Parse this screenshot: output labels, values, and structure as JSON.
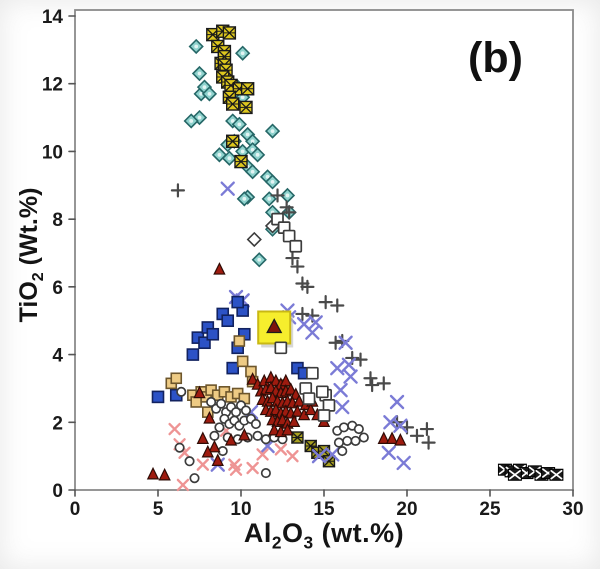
{
  "figure": {
    "panel_label": "(b)"
  },
  "labels": {
    "x_axis": {
      "element": "Al",
      "sub_a": "2",
      "oxide": "O",
      "sub_b": "3",
      "unit": " (wt.%)"
    },
    "y_axis": {
      "compound": "TiO",
      "sub": "2",
      "unit": " (Wt.%)"
    }
  },
  "chart_data": {
    "type": "scatter",
    "title": "",
    "xlabel": "Al2O3 (wt.%)",
    "ylabel": "TiO2 (Wt.%)",
    "xlim": [
      0,
      30
    ],
    "ylim": [
      0,
      14
    ],
    "xticks": [
      0,
      5,
      10,
      15,
      20,
      25,
      30
    ],
    "yticks": [
      0,
      2,
      4,
      6,
      8,
      10,
      12,
      14
    ],
    "grid": false,
    "legend": "none",
    "frame_color": "#8a8a8a",
    "tick_text_color": "#1a1a1a",
    "series": [
      {
        "name": "teal-diamonds",
        "marker": "diamond",
        "fill": "#8ed2cd",
        "stroke": "#266767",
        "size": 6.5,
        "points": [
          [
            7.3,
            13.1
          ],
          [
            10.1,
            12.9
          ],
          [
            7.5,
            12.3
          ],
          [
            7.6,
            11.7
          ],
          [
            7.8,
            11.9
          ],
          [
            8.1,
            11.7
          ],
          [
            9.8,
            11.9
          ],
          [
            10.1,
            11.6
          ],
          [
            7.5,
            11.0
          ],
          [
            7.0,
            10.9
          ],
          [
            9.5,
            10.9
          ],
          [
            9.9,
            10.8
          ],
          [
            11.9,
            10.6
          ],
          [
            9.6,
            10.3
          ],
          [
            10.4,
            10.5
          ],
          [
            10.7,
            10.3
          ],
          [
            9.2,
            10.2
          ],
          [
            8.7,
            9.9
          ],
          [
            9.3,
            9.8
          ],
          [
            10.1,
            10.0
          ],
          [
            10.7,
            10.05
          ],
          [
            11.0,
            9.9
          ],
          [
            10.4,
            9.55
          ],
          [
            10.7,
            9.4
          ],
          [
            11.6,
            9.25
          ],
          [
            11.9,
            9.1
          ],
          [
            12.8,
            8.7
          ],
          [
            10.4,
            8.65
          ],
          [
            10.2,
            8.6
          ],
          [
            11.7,
            8.6
          ],
          [
            11.9,
            8.2
          ],
          [
            12.9,
            8.2
          ],
          [
            11.9,
            7.7
          ],
          [
            11.1,
            6.8
          ]
        ]
      },
      {
        "name": "yellow-hatched-squares",
        "marker": "hatch-square",
        "fill": "#ddc71e",
        "stroke": "#1a1a1a",
        "size": 6,
        "points": [
          [
            8.3,
            13.45
          ],
          [
            8.9,
            13.55
          ],
          [
            9.3,
            13.5
          ],
          [
            8.6,
            13.1
          ],
          [
            9.0,
            12.95
          ],
          [
            8.8,
            12.6
          ],
          [
            9.0,
            12.8
          ],
          [
            9.0,
            12.55
          ],
          [
            9.1,
            12.4
          ],
          [
            8.9,
            12.2
          ],
          [
            9.2,
            12.05
          ],
          [
            9.4,
            11.95
          ],
          [
            9.9,
            11.85
          ],
          [
            9.3,
            11.6
          ],
          [
            9.5,
            11.4
          ],
          [
            10.4,
            11.85
          ],
          [
            10.3,
            11.3
          ],
          [
            9.5,
            10.3
          ],
          [
            10.0,
            9.7
          ]
        ]
      },
      {
        "name": "olive-hatched-squares",
        "marker": "hatch-square",
        "fill": "#a8a020",
        "stroke": "#1a1a1a",
        "size": 5.5,
        "points": [
          [
            13.4,
            1.55
          ],
          [
            14.2,
            1.3
          ],
          [
            14.6,
            1.1
          ],
          [
            15.0,
            1.15
          ],
          [
            15.3,
            0.85
          ]
        ]
      },
      {
        "name": "gray-plus-marks",
        "marker": "plus",
        "fill": "none",
        "stroke": "#4a4a4a",
        "size": 6,
        "points": [
          [
            6.2,
            8.85
          ],
          [
            12.2,
            8.7
          ],
          [
            12.75,
            8.35
          ],
          [
            12.9,
            8.2
          ],
          [
            13.1,
            6.85
          ],
          [
            13.4,
            6.6
          ],
          [
            13.7,
            6.1
          ],
          [
            14.0,
            6.0
          ],
          [
            13.7,
            5.2
          ],
          [
            15.1,
            5.55
          ],
          [
            15.8,
            5.45
          ],
          [
            14.3,
            5.15
          ],
          [
            16.1,
            4.4
          ],
          [
            15.7,
            4.35
          ],
          [
            16.7,
            3.9
          ],
          [
            17.2,
            3.85
          ],
          [
            17.8,
            3.3
          ],
          [
            17.9,
            3.1
          ],
          [
            18.6,
            3.15
          ],
          [
            19.4,
            2.0
          ],
          [
            20.0,
            1.85
          ],
          [
            20.6,
            1.6
          ],
          [
            21.2,
            1.8
          ],
          [
            21.3,
            1.4
          ]
        ]
      },
      {
        "name": "blue-x-marks",
        "marker": "x",
        "fill": "none",
        "stroke": "#7b7bd6",
        "size": 6,
        "points": [
          [
            9.2,
            8.9
          ],
          [
            9.7,
            5.7
          ],
          [
            10.1,
            5.6
          ],
          [
            12.8,
            5.3
          ],
          [
            12.9,
            5.1
          ],
          [
            13.8,
            4.9
          ],
          [
            14.5,
            4.95
          ],
          [
            14.3,
            4.65
          ],
          [
            16.3,
            4.35
          ],
          [
            16.5,
            3.7
          ],
          [
            16.6,
            3.35
          ],
          [
            15.8,
            3.6
          ],
          [
            16.0,
            2.95
          ],
          [
            16.1,
            2.45
          ],
          [
            19.4,
            2.6
          ],
          [
            19.0,
            2.0
          ],
          [
            19.6,
            1.9
          ],
          [
            18.9,
            1.1
          ],
          [
            19.8,
            0.8
          ],
          [
            14.7,
            1.0
          ],
          [
            11.6,
            1.3
          ],
          [
            10.6,
            2.3
          ],
          [
            8.6,
            0.75
          ],
          [
            15.5,
            1.05
          ]
        ]
      },
      {
        "name": "pink-x-marks",
        "marker": "x",
        "fill": "none",
        "stroke": "#ee9494",
        "size": 5,
        "points": [
          [
            6.0,
            1.8
          ],
          [
            6.3,
            1.35
          ],
          [
            6.6,
            1.1
          ],
          [
            7.7,
            0.75
          ],
          [
            9.6,
            0.75
          ],
          [
            11.3,
            1.05
          ],
          [
            12.4,
            1.2
          ],
          [
            13.1,
            1.0
          ],
          [
            10.7,
            0.65
          ],
          [
            9.7,
            0.6
          ],
          [
            6.5,
            0.15
          ],
          [
            9.1,
            1.75
          ]
        ]
      },
      {
        "name": "blue-filled-squares",
        "marker": "square",
        "fill": "#2c52c6",
        "stroke": "#12225f",
        "size": 5.5,
        "points": [
          [
            7.4,
            4.5
          ],
          [
            7.8,
            4.35
          ],
          [
            8.0,
            4.8
          ],
          [
            8.3,
            4.6
          ],
          [
            8.9,
            5.2
          ],
          [
            9.2,
            5.0
          ],
          [
            10.1,
            5.3
          ],
          [
            9.8,
            5.55
          ],
          [
            10.2,
            4.6
          ],
          [
            9.8,
            4.2
          ],
          [
            7.1,
            4.0
          ],
          [
            5.0,
            2.75
          ],
          [
            6.1,
            2.8
          ],
          [
            13.4,
            3.6
          ],
          [
            13.8,
            3.45
          ],
          [
            9.5,
            3.6
          ]
        ]
      },
      {
        "name": "tan-squares",
        "marker": "square",
        "fill": "#eecb84",
        "stroke": "#6d562c",
        "size": 5,
        "points": [
          [
            5.8,
            3.15
          ],
          [
            6.1,
            3.3
          ],
          [
            7.1,
            2.8
          ],
          [
            7.3,
            2.6
          ],
          [
            7.6,
            2.9
          ],
          [
            7.9,
            2.75
          ],
          [
            8.2,
            2.95
          ],
          [
            8.6,
            2.8
          ],
          [
            9.0,
            2.9
          ],
          [
            9.4,
            2.75
          ],
          [
            9.8,
            2.85
          ],
          [
            10.2,
            2.7
          ],
          [
            10.7,
            3.2
          ],
          [
            9.9,
            4.4
          ],
          [
            10.1,
            3.8
          ],
          [
            10.6,
            3.5
          ],
          [
            12.5,
            3.1
          ],
          [
            8.0,
            2.3
          ]
        ]
      },
      {
        "name": "open-circles",
        "marker": "circle-open",
        "fill": "#ffffff",
        "stroke": "#3c3c3c",
        "size": 4.2,
        "points": [
          [
            8.2,
            2.6
          ],
          [
            8.5,
            2.4
          ],
          [
            8.8,
            2.55
          ],
          [
            9.1,
            2.3
          ],
          [
            9.4,
            2.45
          ],
          [
            9.7,
            2.3
          ],
          [
            10.0,
            2.5
          ],
          [
            10.3,
            2.35
          ],
          [
            9.0,
            2.1
          ],
          [
            9.3,
            1.95
          ],
          [
            9.6,
            2.05
          ],
          [
            9.9,
            1.9
          ],
          [
            10.2,
            2.05
          ],
          [
            10.6,
            2.1
          ],
          [
            10.9,
            1.95
          ],
          [
            8.7,
            1.85
          ],
          [
            8.4,
            1.6
          ],
          [
            9.2,
            1.55
          ],
          [
            9.8,
            1.5
          ],
          [
            10.4,
            1.55
          ],
          [
            11.0,
            1.6
          ],
          [
            11.5,
            1.5
          ],
          [
            12.0,
            1.55
          ],
          [
            12.5,
            1.5
          ],
          [
            8.9,
            1.15
          ],
          [
            7.2,
            0.35
          ],
          [
            6.9,
            0.85
          ],
          [
            6.3,
            1.25
          ],
          [
            6.4,
            2.9
          ],
          [
            11.5,
            0.5
          ],
          [
            15.8,
            1.75
          ],
          [
            16.2,
            1.85
          ],
          [
            16.7,
            1.9
          ],
          [
            17.1,
            1.8
          ],
          [
            15.9,
            1.4
          ],
          [
            16.4,
            1.45
          ],
          [
            16.9,
            1.45
          ],
          [
            17.4,
            1.55
          ],
          [
            16.1,
            1.15
          ]
        ]
      },
      {
        "name": "red-triangles",
        "marker": "triangle",
        "fill": "#9e1b0f",
        "stroke": "#2f0c06",
        "size": 5.5,
        "points": [
          [
            8.7,
            6.5
          ],
          [
            10.7,
            3.25
          ],
          [
            11.0,
            3.1
          ],
          [
            11.4,
            3.2
          ],
          [
            11.8,
            3.3
          ],
          [
            12.1,
            3.2
          ],
          [
            12.4,
            3.1
          ],
          [
            12.7,
            3.2
          ],
          [
            11.2,
            2.9
          ],
          [
            11.5,
            2.95
          ],
          [
            11.8,
            3.0
          ],
          [
            12.1,
            2.9
          ],
          [
            12.4,
            2.85
          ],
          [
            12.7,
            2.9
          ],
          [
            13.0,
            2.95
          ],
          [
            13.3,
            2.8
          ],
          [
            11.3,
            2.65
          ],
          [
            11.6,
            2.6
          ],
          [
            11.9,
            2.7
          ],
          [
            12.2,
            2.6
          ],
          [
            12.5,
            2.55
          ],
          [
            12.8,
            2.6
          ],
          [
            13.1,
            2.55
          ],
          [
            13.5,
            2.6
          ],
          [
            13.9,
            2.5
          ],
          [
            14.3,
            2.6
          ],
          [
            11.5,
            2.35
          ],
          [
            11.8,
            2.3
          ],
          [
            12.1,
            2.35
          ],
          [
            12.4,
            2.25
          ],
          [
            12.7,
            2.3
          ],
          [
            13.0,
            2.25
          ],
          [
            13.4,
            2.3
          ],
          [
            13.8,
            2.2
          ],
          [
            14.2,
            2.35
          ],
          [
            11.9,
            2.05
          ],
          [
            12.2,
            2.0
          ],
          [
            12.5,
            2.05
          ],
          [
            12.8,
            1.95
          ],
          [
            13.2,
            2.0
          ],
          [
            12.0,
            1.75
          ],
          [
            12.4,
            1.7
          ],
          [
            12.8,
            1.75
          ],
          [
            14.6,
            2.2
          ],
          [
            15.0,
            2.0
          ],
          [
            7.5,
            2.85
          ],
          [
            8.1,
            2.1
          ],
          [
            7.7,
            1.5
          ],
          [
            8.4,
            1.25
          ],
          [
            8.0,
            1.1
          ],
          [
            8.6,
            0.85
          ],
          [
            4.7,
            0.45
          ],
          [
            5.4,
            0.42
          ],
          [
            10.2,
            1.6
          ],
          [
            9.4,
            1.45
          ],
          [
            18.6,
            1.5
          ],
          [
            19.1,
            1.5
          ],
          [
            19.6,
            1.45
          ]
        ]
      },
      {
        "name": "open-diamonds",
        "marker": "diamond-open",
        "fill": "#ffffff",
        "stroke": "#3c3c3c",
        "size": 6.5,
        "points": [
          [
            11.9,
            7.8
          ],
          [
            10.8,
            7.4
          ]
        ]
      },
      {
        "name": "highlighted-sample",
        "marker": "highlight-square-triangle",
        "fill": "#f6ee2d",
        "stroke": "#c9b814",
        "triangle_fill": "#7e150b",
        "size": 16,
        "points": [
          [
            12.0,
            4.8
          ]
        ]
      },
      {
        "name": "open-squares",
        "marker": "square-open",
        "fill": "#ffffff",
        "stroke": "#3c3c3c",
        "size": 5.5,
        "points": [
          [
            12.2,
            8.0
          ],
          [
            12.6,
            7.75
          ],
          [
            12.9,
            7.5
          ],
          [
            13.3,
            7.2
          ],
          [
            13.9,
            3.0
          ],
          [
            14.1,
            2.7
          ],
          [
            15.1,
            2.8
          ],
          [
            15.3,
            2.5
          ],
          [
            15.0,
            2.2
          ],
          [
            14.9,
            2.9
          ],
          [
            14.3,
            3.45
          ],
          [
            12.4,
            4.2
          ]
        ]
      },
      {
        "name": "black-boxed-x-cluster",
        "marker": "boxed-x",
        "fill": "#1b1b1b",
        "stroke": "#000000",
        "size": 6.5,
        "points": [
          [
            25.9,
            0.6
          ],
          [
            26.3,
            0.55
          ],
          [
            26.8,
            0.6
          ],
          [
            27.2,
            0.5
          ],
          [
            27.7,
            0.55
          ],
          [
            28.1,
            0.45
          ],
          [
            28.5,
            0.5
          ],
          [
            26.5,
            0.45
          ],
          [
            29.0,
            0.45
          ]
        ]
      }
    ]
  }
}
